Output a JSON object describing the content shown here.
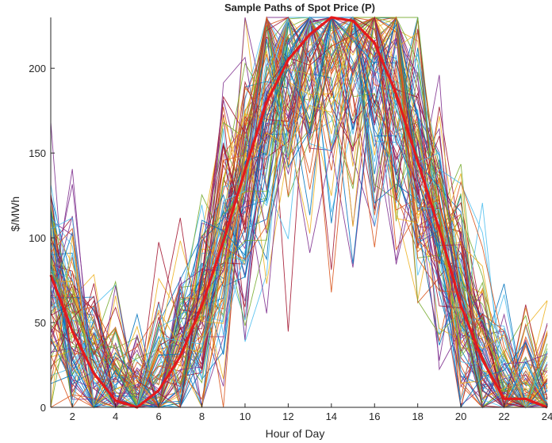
{
  "chart_data": {
    "type": "line",
    "title": "Sample Paths of Spot Price (P)",
    "xlabel": "Hour of Day",
    "ylabel": "$/MWh",
    "xlim": [
      1,
      24
    ],
    "ylim": [
      0,
      230
    ],
    "xticks": [
      2,
      4,
      6,
      8,
      10,
      12,
      14,
      16,
      18,
      20,
      22,
      24
    ],
    "yticks": [
      0,
      50,
      100,
      150,
      200
    ],
    "grid": false,
    "legend": "none",
    "x": [
      1,
      2,
      3,
      4,
      5,
      6,
      7,
      8,
      9,
      10,
      11,
      12,
      13,
      14,
      15,
      16,
      17,
      18,
      19,
      20,
      21,
      22,
      23,
      24
    ],
    "mean_series": {
      "color": "#e41a1c",
      "values": [
        78,
        45,
        20,
        4,
        0,
        10,
        30,
        60,
        98,
        140,
        180,
        205,
        220,
        230,
        228,
        215,
        185,
        145,
        105,
        60,
        28,
        5,
        5,
        0
      ]
    },
    "sample_paths": {
      "count": 100,
      "cap": 230,
      "colors": [
        "#0072BD",
        "#D95319",
        "#EDB120",
        "#7E2F8E",
        "#77AC30",
        "#4DBEEE",
        "#A2142F"
      ]
    }
  }
}
